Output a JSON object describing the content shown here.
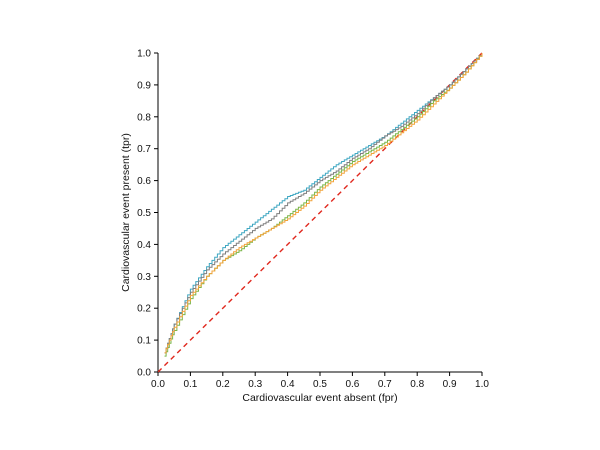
{
  "chart_data": {
    "type": "line",
    "title": "",
    "xlabel": "Cardiovascular event absent (fpr)",
    "ylabel": "Cardiovascular event present (tpr)",
    "xlim": [
      0.0,
      1.0
    ],
    "ylim": [
      0.0,
      1.0
    ],
    "xticks": [
      "0.0",
      "0.1",
      "0.2",
      "0.3",
      "0.4",
      "0.5",
      "0.6",
      "0.7",
      "0.8",
      "0.9",
      "1.0"
    ],
    "yticks": [
      "0.0",
      "0.1",
      "0.2",
      "0.3",
      "0.4",
      "0.5",
      "0.6",
      "0.7",
      "0.8",
      "0.9",
      "1.0"
    ],
    "grid": false,
    "legend": "none",
    "reference_line": {
      "x": [
        0.0,
        1.0
      ],
      "y": [
        0.0,
        1.0
      ],
      "color": "#e0281e",
      "style": "dashed"
    },
    "series": [
      {
        "color": "#3fa7c2",
        "x": [
          0.02,
          0.05,
          0.1,
          0.15,
          0.2,
          0.25,
          0.3,
          0.35,
          0.4,
          0.45,
          0.5,
          0.55,
          0.6,
          0.65,
          0.7,
          0.75,
          0.8,
          0.85,
          0.9,
          0.95,
          1.0
        ],
        "y": [
          0.06,
          0.15,
          0.26,
          0.33,
          0.39,
          0.43,
          0.47,
          0.51,
          0.55,
          0.57,
          0.61,
          0.65,
          0.68,
          0.71,
          0.74,
          0.78,
          0.82,
          0.86,
          0.9,
          0.95,
          1.0
        ]
      },
      {
        "color": "#7f7f7f",
        "x": [
          0.02,
          0.05,
          0.1,
          0.15,
          0.2,
          0.25,
          0.3,
          0.35,
          0.4,
          0.45,
          0.5,
          0.55,
          0.6,
          0.65,
          0.7,
          0.75,
          0.8,
          0.85,
          0.9,
          0.95,
          1.0
        ],
        "y": [
          0.06,
          0.15,
          0.25,
          0.32,
          0.37,
          0.41,
          0.45,
          0.48,
          0.53,
          0.56,
          0.6,
          0.63,
          0.67,
          0.7,
          0.74,
          0.77,
          0.81,
          0.86,
          0.9,
          0.95,
          1.0
        ]
      },
      {
        "color": "#7ab648",
        "x": [
          0.02,
          0.05,
          0.1,
          0.15,
          0.2,
          0.25,
          0.3,
          0.35,
          0.4,
          0.45,
          0.5,
          0.55,
          0.6,
          0.65,
          0.7,
          0.75,
          0.8,
          0.85,
          0.9,
          0.95,
          1.0
        ],
        "y": [
          0.05,
          0.13,
          0.23,
          0.3,
          0.35,
          0.38,
          0.42,
          0.45,
          0.49,
          0.53,
          0.58,
          0.62,
          0.66,
          0.69,
          0.72,
          0.76,
          0.8,
          0.85,
          0.89,
          0.94,
          1.0
        ]
      },
      {
        "color": "#f2a33a",
        "x": [
          0.02,
          0.05,
          0.1,
          0.15,
          0.2,
          0.25,
          0.3,
          0.35,
          0.4,
          0.45,
          0.5,
          0.55,
          0.6,
          0.65,
          0.7,
          0.75,
          0.8,
          0.85,
          0.9,
          0.95,
          1.0
        ],
        "y": [
          0.06,
          0.14,
          0.24,
          0.3,
          0.35,
          0.39,
          0.42,
          0.45,
          0.48,
          0.52,
          0.57,
          0.61,
          0.65,
          0.68,
          0.71,
          0.75,
          0.79,
          0.84,
          0.89,
          0.94,
          1.0
        ]
      }
    ]
  }
}
